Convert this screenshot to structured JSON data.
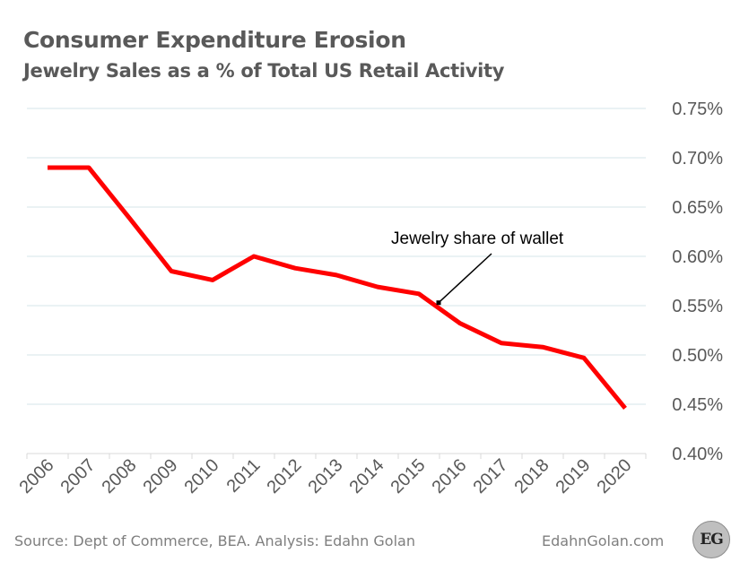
{
  "header": {
    "title": "Consumer Expenditure Erosion",
    "subtitle": "Jewelry Sales as a % of Total US Retail Activity"
  },
  "footer": {
    "source": "Source: Dept of Commerce, BEA. Analysis: Edahn Golan",
    "site": "EdahnGolan.com",
    "logo": "EG"
  },
  "chart_data": {
    "type": "line",
    "title": "Consumer Expenditure Erosion",
    "subtitle": "Jewelry Sales as a % of Total US Retail Activity",
    "xlabel": "",
    "ylabel": "",
    "categories": [
      "2006",
      "2007",
      "2008",
      "2009",
      "2010",
      "2011",
      "2012",
      "2013",
      "2014",
      "2015",
      "2016",
      "2017",
      "2018",
      "2019",
      "2020"
    ],
    "series": [
      {
        "name": "Jewelry share of wallet",
        "color": "#ff0000",
        "values": [
          0.69,
          0.69,
          0.638,
          0.585,
          0.576,
          0.6,
          0.588,
          0.581,
          0.569,
          0.562,
          0.532,
          0.512,
          0.508,
          0.497,
          0.446
        ]
      }
    ],
    "ylim": [
      0.4,
      0.75
    ],
    "yticks": [
      "0.40%",
      "0.45%",
      "0.50%",
      "0.55%",
      "0.60%",
      "0.65%",
      "0.70%",
      "0.75%"
    ],
    "y_axis_position": "right",
    "grid": true,
    "annotation": {
      "text": "Jewelry share of wallet",
      "x_index": 9.5,
      "y": 0.553
    }
  }
}
